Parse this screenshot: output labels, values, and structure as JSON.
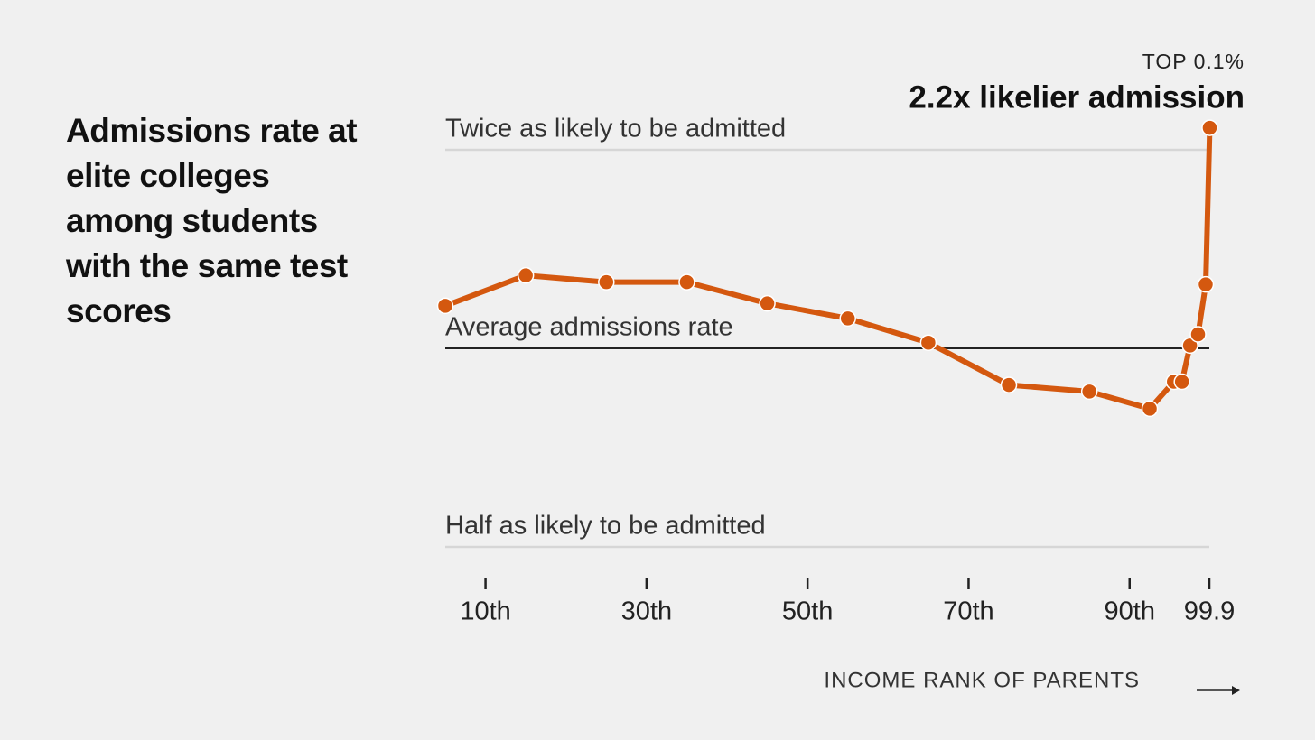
{
  "chart_data": {
    "type": "line",
    "title": "Admissions rate at elite colleges among students with the same test scores",
    "x_label": "INCOME RANK OF PARENTS",
    "annotations": [
      "TOP 0.1%",
      "2.2x likelier admission"
    ],
    "x": [
      5,
      15,
      25,
      35,
      45,
      55,
      65,
      75,
      85,
      92.5,
      95.5,
      96.5,
      97.5,
      98.5,
      99.45,
      99.95
    ],
    "series": [
      {
        "color": "#d4580f",
        "values": [
          1.16,
          1.29,
          1.26,
          1.26,
          1.17,
          1.11,
          1.02,
          0.88,
          0.86,
          0.81,
          0.89,
          0.89,
          1.01,
          1.05,
          1.25,
          2.16
        ]
      }
    ],
    "xlim": [
      5,
      99.9
    ],
    "xticks": [
      {
        "value": 10,
        "label": "10th"
      },
      {
        "value": 30,
        "label": "30th"
      },
      {
        "value": 50,
        "label": "50th"
      },
      {
        "value": 70,
        "label": "70th"
      },
      {
        "value": 90,
        "label": "90th"
      },
      99.9
    ],
    "ylim": [
      0.5,
      2
    ],
    "yticks": [
      {
        "value": 2,
        "label": "Twice as likely to be admitted"
      },
      {
        "value": 1,
        "label": "Average admissions rate"
      },
      {
        "value": 0.5,
        "label": "Half as likely to be admitted"
      }
    ],
    "log_scale_y": true,
    "grid": true
  }
}
